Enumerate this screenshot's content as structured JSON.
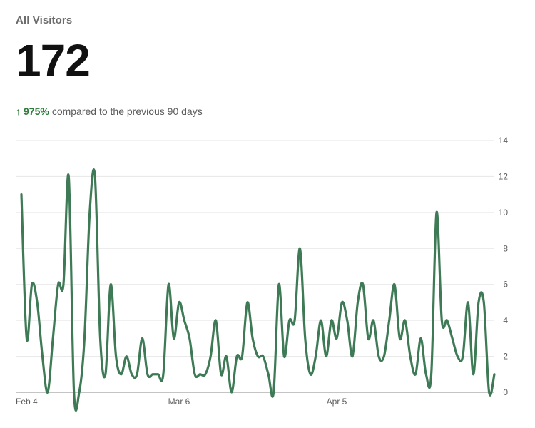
{
  "header": {
    "title": "All Visitors",
    "metric": "172",
    "change_arrow": "↑",
    "change_pct": "975%",
    "change_text": "compared to the previous 90 days"
  },
  "chart_data": {
    "type": "line",
    "series_color": "#3d7a55",
    "grid": true,
    "ylim": [
      0,
      14
    ],
    "y_ticks": [
      0,
      2,
      4,
      6,
      8,
      10,
      12,
      14
    ],
    "x_tick_labels": [
      {
        "label": "Feb 4",
        "index": 0
      },
      {
        "label": "Mar 6",
        "index": 30
      },
      {
        "label": "Apr 5",
        "index": 60
      }
    ],
    "values": [
      11,
      3,
      6,
      5,
      2,
      0,
      3,
      6,
      6,
      12,
      0,
      0,
      3,
      10,
      12,
      3,
      1,
      6,
      2,
      1,
      2,
      1,
      1,
      3,
      1,
      1,
      1,
      1,
      6,
      3,
      5,
      4,
      3,
      1,
      1,
      1,
      2,
      4,
      1,
      2,
      0,
      2,
      2,
      5,
      3,
      2,
      2,
      1,
      0,
      6,
      2,
      4,
      4,
      8,
      3,
      1,
      2,
      4,
      2,
      4,
      3,
      5,
      4,
      2,
      5,
      6,
      3,
      4,
      2,
      2,
      4,
      6,
      3,
      4,
      2,
      1,
      3,
      1,
      1,
      10,
      4,
      4,
      3,
      2,
      2,
      5,
      1,
      5,
      5,
      0,
      1
    ]
  }
}
